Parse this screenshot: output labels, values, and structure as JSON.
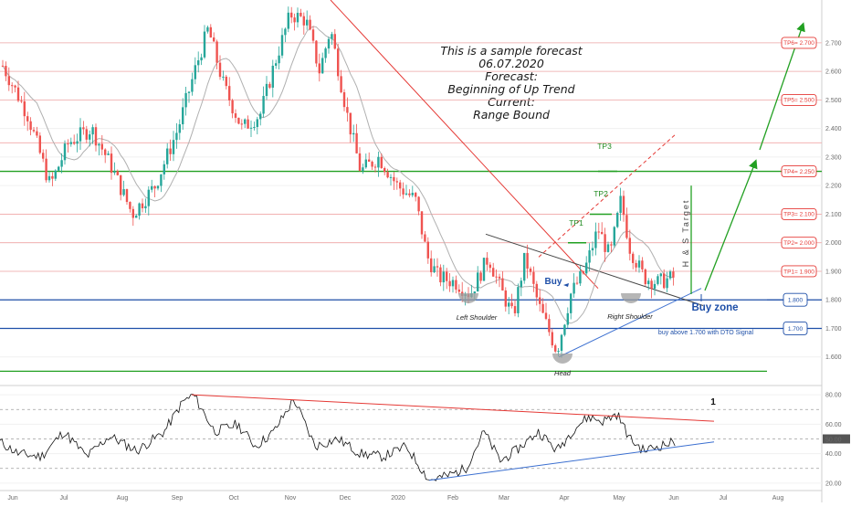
{
  "chart_data": {
    "type": "candlestick",
    "title": "",
    "forecast_note": [
      "This is a sample forecast",
      "06.07.2020",
      "Forecast:",
      "Beginning of Up Trend",
      "Current:",
      "Range Bound"
    ],
    "price_axis": {
      "ylim": [
        1.5,
        2.85
      ],
      "ticks": [
        1.6,
        1.7,
        1.8,
        1.9,
        2.0,
        2.1,
        2.2,
        2.3,
        2.4,
        2.5,
        2.6,
        2.7
      ],
      "tick_labels": [
        "1.600",
        "1.700",
        "1.800",
        "1.900",
        "2.000",
        "2.100",
        "2.200",
        "2.300",
        "2.400",
        "2.500",
        "2.600",
        "2.700"
      ]
    },
    "osc_axis": {
      "ylim": [
        15,
        85
      ],
      "ticks": [
        20,
        30,
        40,
        50,
        60,
        70,
        80
      ],
      "tick_labels": [
        "20.00",
        "",
        "40.00",
        "50.00",
        "60.00",
        "",
        "80.00"
      ]
    },
    "x_axis": {
      "labels": [
        "Jun",
        "Jul",
        "Aug",
        "Sep",
        "Oct",
        "Nov",
        "Dec",
        "2020",
        "Feb",
        "Mar",
        "Apr",
        "May",
        "Jun",
        "Jul",
        "Aug"
      ]
    },
    "tp_levels": [
      {
        "label": "TP1= 1.900",
        "value": 1.9
      },
      {
        "label": "TP2= 2.000",
        "value": 2.0
      },
      {
        "label": "TP3= 2.100",
        "value": 2.1
      },
      {
        "label": "TP4= 2.250",
        "value": 2.25
      },
      {
        "label": "TP5= 2.500",
        "value": 2.5
      },
      {
        "label": "TP6= 2.700",
        "value": 2.7
      }
    ],
    "support_levels": [
      {
        "label": "1.800",
        "value": 1.8
      },
      {
        "label": "1.700",
        "value": 1.7
      }
    ],
    "extra_red_lines": [
      2.35,
      2.6
    ],
    "annotations": {
      "tp1": "TP1",
      "tp2": "TP2",
      "tp3": "TP3",
      "buy": "Buy",
      "buy_zone": "Buy zone",
      "buy_above": "buy above 1.700 with DTO Signal",
      "hs_target": "H & S Target",
      "left_shoulder": "Left Shoulder",
      "head": "Head",
      "right_shoulder": "Right Shoulder",
      "osc_marker": "1"
    },
    "osc_current_value": "50.00",
    "candles": [],
    "oscillator": []
  },
  "colors": {
    "up": "#26a69a",
    "down": "#ef5350",
    "tp": "#e53935",
    "support": "#1e4fa8",
    "green": "#22a022",
    "trend_red": "#e53935",
    "trend_blue": "#3b6fd0",
    "ma": "#b0b0b0"
  }
}
